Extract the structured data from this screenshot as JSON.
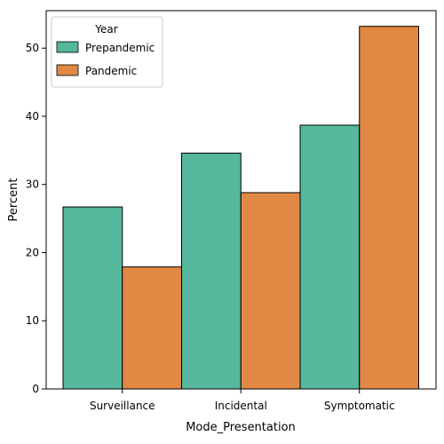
{
  "chart_data": {
    "type": "bar",
    "xlabel": "Mode_Presentation",
    "ylabel": "Percent",
    "categories": [
      "Surveillance",
      "Incidental",
      "Symptomatic"
    ],
    "series": [
      {
        "name": "Prepandemic",
        "color": "#55b79b",
        "values": [
          26.7,
          34.6,
          38.7
        ]
      },
      {
        "name": "Pandemic",
        "color": "#e08844",
        "values": [
          17.9,
          28.8,
          53.2
        ]
      }
    ],
    "ylim": [
      0,
      55.5
    ],
    "yticks": [
      0,
      10,
      20,
      30,
      40,
      50
    ],
    "legend": {
      "title": "Year",
      "placement": "top-left"
    },
    "grid": false
  }
}
